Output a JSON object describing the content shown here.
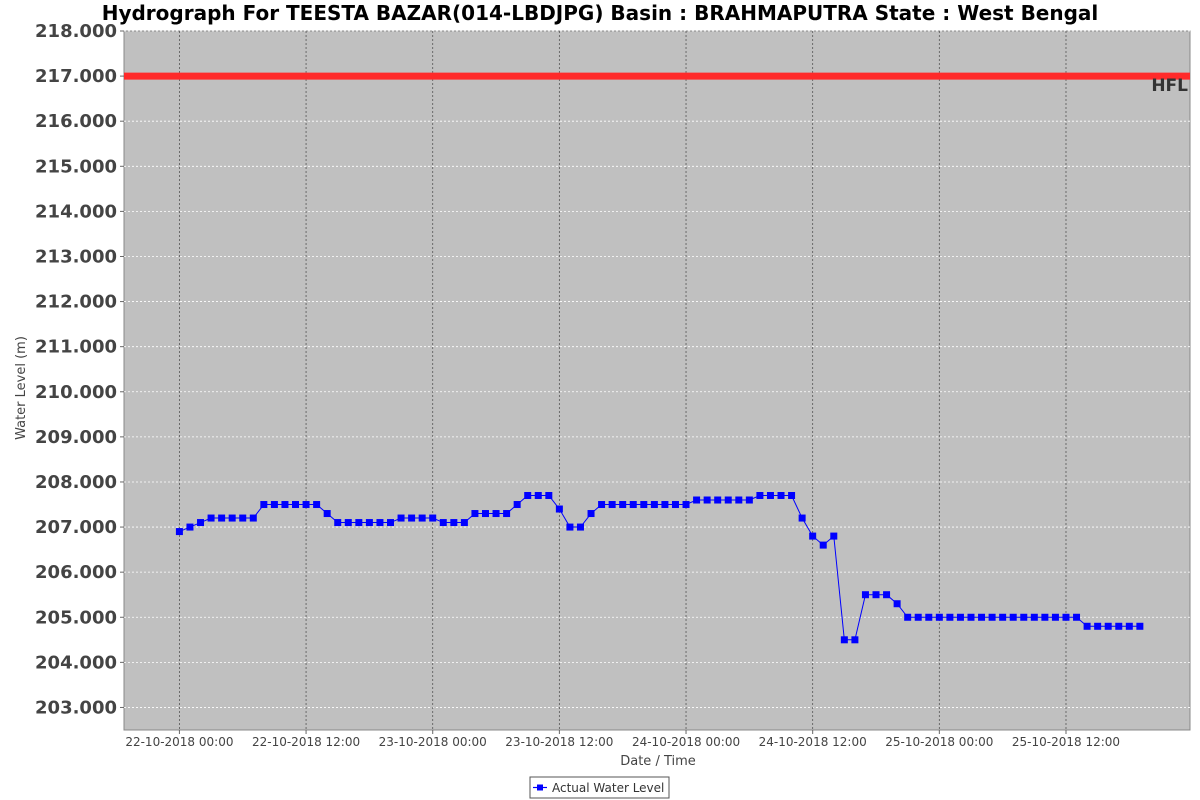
{
  "chart_data": {
    "type": "line",
    "title": "Hydrograph For TEESTA BAZAR(014-LBDJPG) Basin : BRAHMAPUTRA State : West Bengal",
    "xlabel": "Date / Time",
    "ylabel": "Water Level (m)",
    "ylim": [
      202.5,
      218.0
    ],
    "y_ticks": [
      "203.000",
      "204.000",
      "205.000",
      "206.000",
      "207.000",
      "208.000",
      "209.000",
      "210.000",
      "211.000",
      "212.000",
      "213.000",
      "214.000",
      "215.000",
      "216.000",
      "217.000",
      "218.000"
    ],
    "x_range_hours": [
      -5.25,
      95.75
    ],
    "x_ticks": [
      {
        "label": "22-10-2018 00:00",
        "hour": 0
      },
      {
        "label": "22-10-2018 12:00",
        "hour": 12
      },
      {
        "label": "23-10-2018 00:00",
        "hour": 24
      },
      {
        "label": "23-10-2018 12:00",
        "hour": 36
      },
      {
        "label": "24-10-2018 00:00",
        "hour": 48
      },
      {
        "label": "24-10-2018 12:00",
        "hour": 60
      },
      {
        "label": "25-10-2018 00:00",
        "hour": 72
      },
      {
        "label": "25-10-2018 12:00",
        "hour": 84
      }
    ],
    "grid": true,
    "legend_position": "bottom-center",
    "reference_lines": [
      {
        "label": "HFL",
        "value": 217.0,
        "color": "#ff2a2a"
      }
    ],
    "series": [
      {
        "name": "Actual Water Level",
        "color": "#0000ff",
        "x_hours": [
          0,
          1,
          2,
          3,
          4,
          5,
          6,
          7,
          8,
          9,
          10,
          11,
          12,
          13,
          14,
          15,
          16,
          17,
          18,
          19,
          20,
          21,
          22,
          23,
          24,
          25,
          26,
          27,
          28,
          29,
          30,
          31,
          32,
          33,
          34,
          35,
          36,
          37,
          38,
          39,
          40,
          41,
          42,
          43,
          44,
          45,
          46,
          47,
          48,
          49,
          50,
          51,
          52,
          53,
          54,
          55,
          56,
          57,
          58,
          59,
          60,
          61,
          62,
          63,
          64,
          65,
          66,
          67,
          68,
          69,
          70,
          71,
          72,
          73,
          74,
          75,
          76,
          77,
          78,
          79,
          80,
          81,
          82,
          83,
          84,
          85,
          86,
          87,
          88,
          89,
          90,
          91
        ],
        "values": [
          206.9,
          207.0,
          207.1,
          207.2,
          207.2,
          207.2,
          207.2,
          207.2,
          207.5,
          207.5,
          207.5,
          207.5,
          207.5,
          207.5,
          207.3,
          207.1,
          207.1,
          207.1,
          207.1,
          207.1,
          207.1,
          207.2,
          207.2,
          207.2,
          207.2,
          207.1,
          207.1,
          207.1,
          207.3,
          207.3,
          207.3,
          207.3,
          207.5,
          207.7,
          207.7,
          207.7,
          207.4,
          207.0,
          207.0,
          207.3,
          207.5,
          207.5,
          207.5,
          207.5,
          207.5,
          207.5,
          207.5,
          207.5,
          207.5,
          207.6,
          207.6,
          207.6,
          207.6,
          207.6,
          207.6,
          207.7,
          207.7,
          207.7,
          207.7,
          207.2,
          206.8,
          206.6,
          206.8,
          204.5,
          204.5,
          205.5,
          205.5,
          205.5,
          205.3,
          205.0,
          205.0,
          205.0,
          205.0,
          205.0,
          205.0,
          205.0,
          205.0,
          205.0,
          205.0,
          205.0,
          205.0,
          205.0,
          205.0,
          205.0,
          205.0,
          205.0,
          204.8,
          204.8,
          204.8,
          204.8,
          204.8,
          204.8
        ]
      }
    ]
  }
}
